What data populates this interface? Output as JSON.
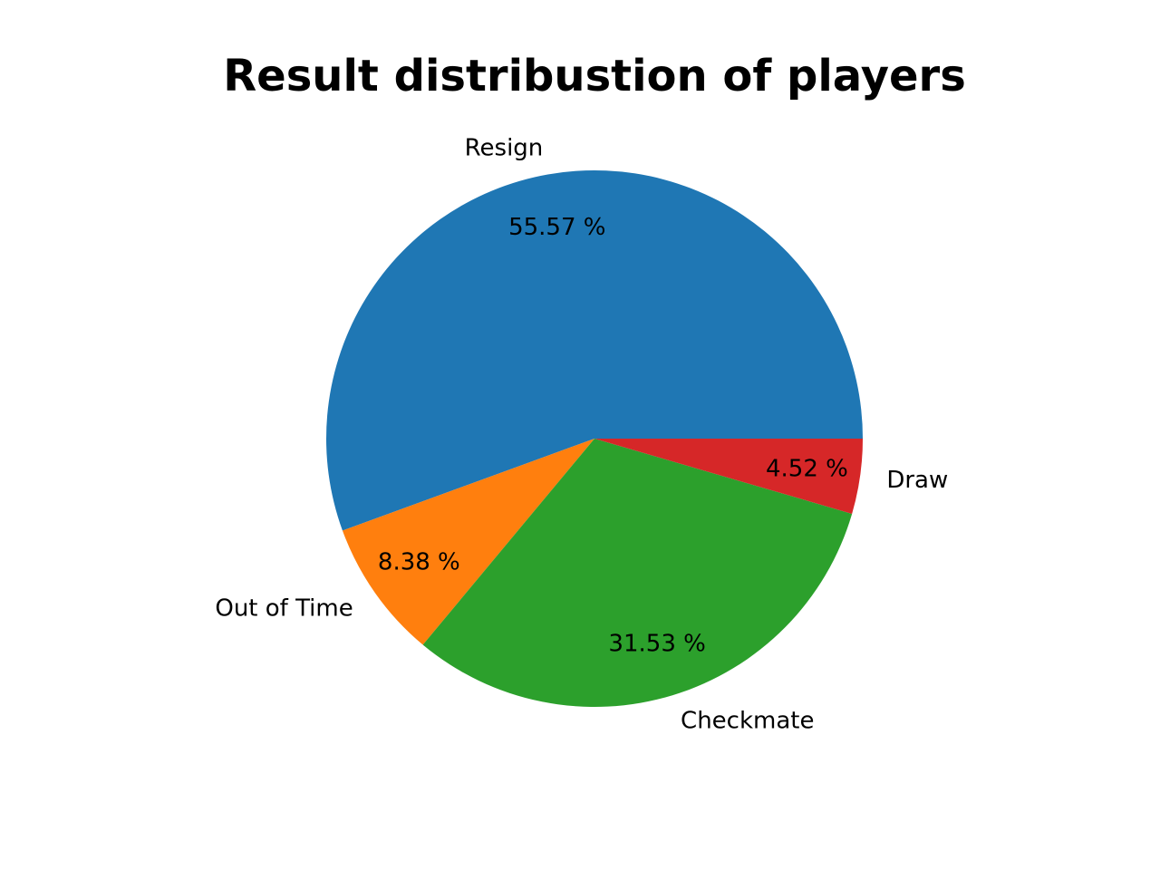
{
  "chart_data": {
    "type": "pie",
    "title": "Result distribustion of players",
    "slices": [
      {
        "label": "Resign",
        "value": 55.57,
        "pct_label": "55.57 %",
        "color": "#1f77b4"
      },
      {
        "label": "Out of Time",
        "value": 8.38,
        "pct_label": "8.38 %",
        "color": "#ff7f0e"
      },
      {
        "label": "Checkmate",
        "value": 31.53,
        "pct_label": "31.53 %",
        "color": "#2ca02c"
      },
      {
        "label": "Draw",
        "value": 4.52,
        "pct_label": "4.52 %",
        "color": "#d62728"
      }
    ],
    "start_angle_deg": 0,
    "direction": "counterclockwise",
    "legend": "none"
  }
}
